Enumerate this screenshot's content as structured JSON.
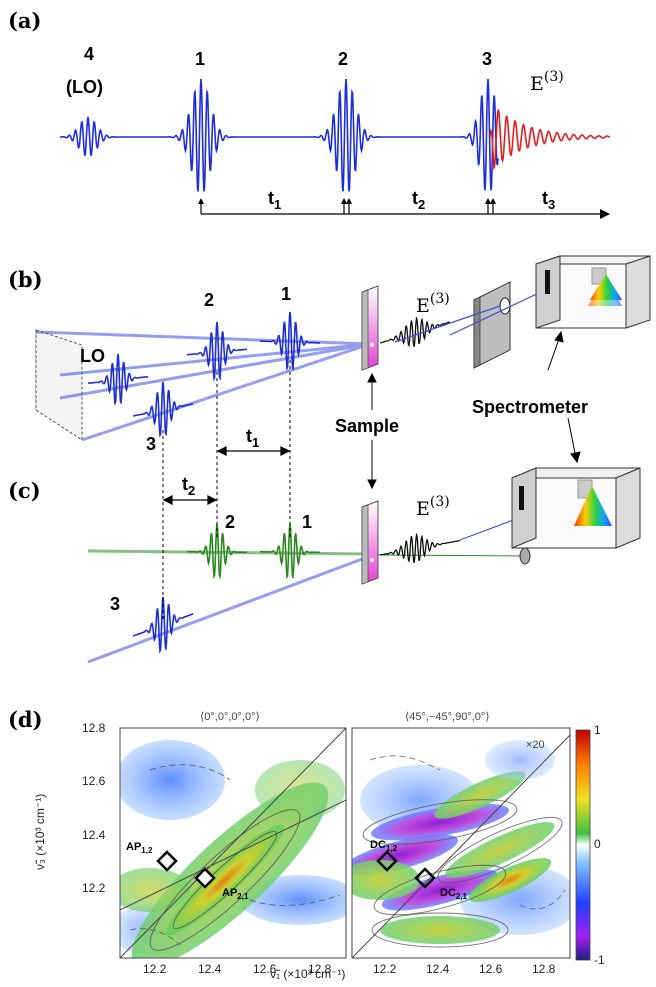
{
  "panel_a": {
    "label": "(a)",
    "lo_number": "4",
    "lo_tag": "(LO)",
    "pulse_1": "1",
    "pulse_2": "2",
    "pulse_3": "3",
    "signal": "E",
    "signal_sup": "(3)",
    "t1": "t",
    "t1_sub": "1",
    "t2": "t",
    "t2_sub": "2",
    "t3": "t",
    "t3_sub": "3"
  },
  "panel_b": {
    "label": "(b)",
    "lo": "LO",
    "pulse_1": "1",
    "pulse_2": "2",
    "pulse_3": "3",
    "signal": "E",
    "signal_sup": "(3)",
    "t1": "t",
    "t1_sub": "1",
    "sample": "Sample",
    "spectrometer": "Spectrometer"
  },
  "panel_c": {
    "label": "(c)",
    "pulse_1": "1",
    "pulse_2": "2",
    "pulse_3": "3",
    "signal": "E",
    "signal_sup": "(3)",
    "t2": "t",
    "t2_sub": "2"
  },
  "panel_d": {
    "label": "(d)",
    "left_title": "⟨0°,0°,0°,0°⟩",
    "right_title": "⟨45°,−45°,90°,0°⟩",
    "scale_note": "×20",
    "y_label": "ν̃₃ (×10³ cm⁻¹)",
    "x_label": "ν̃₁ (×10³ cm⁻¹)",
    "y_ticks": [
      "12.8",
      "12.6",
      "12.4",
      "12.2"
    ],
    "x_ticks_left": [
      "12.2",
      "12.4",
      "12.6",
      "12.8"
    ],
    "x_ticks_right": [
      "12.2",
      "12.4",
      "12.6",
      "12.8"
    ],
    "left_annotations": {
      "ap12": "AP",
      "ap12_sub": "1,2",
      "ap21": "AP",
      "ap21_sub": "2,1"
    },
    "right_annotations": {
      "dc12": "DC",
      "dc12_sub": "1,2",
      "dc21": "DC",
      "dc21_sub": "2,1"
    },
    "colorbar_ticks": [
      "1",
      "0",
      "-1"
    ],
    "colors": {
      "blue": "#1f2fd6",
      "red": "#e02020",
      "green": "#2a8a1e"
    }
  }
}
